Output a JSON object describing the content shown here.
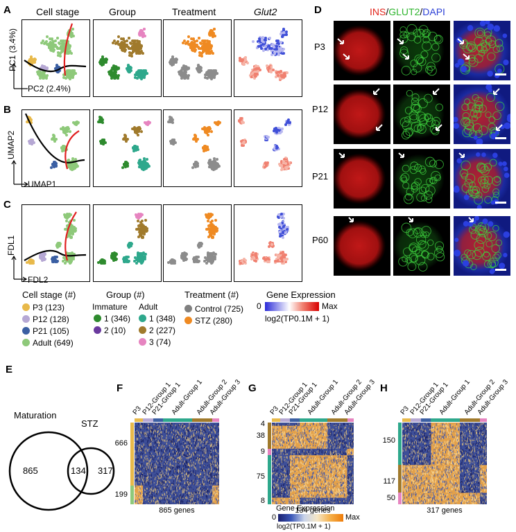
{
  "labels": {
    "A": "A",
    "B": "B",
    "C": "C",
    "D": "D",
    "E": "E",
    "F": "F",
    "G": "G",
    "H": "H"
  },
  "colheads": {
    "c1": "Cell stage",
    "c2": "Group",
    "c3": "Treatment",
    "c4": "Glut2"
  },
  "axes": {
    "A": {
      "y": "PC1 (3.4%)",
      "x": "PC2 (2.4%)"
    },
    "B": {
      "y": "UMAP2",
      "x": "UMAP1"
    },
    "C": {
      "y": "FDL1",
      "x": "FDL2"
    }
  },
  "micro": {
    "title_ins": "INS",
    "title_sep1": "/",
    "title_glut2": "GLUT2",
    "title_sep2": "/",
    "title_dapi": "DAPI",
    "rows": [
      "P3",
      "P12",
      "P21",
      "P60"
    ]
  },
  "legend": {
    "cellstage_title": "Cell stage (#)",
    "cellstage": [
      {
        "label": "P3 (123)",
        "color": "#e8b94a"
      },
      {
        "label": "P12 (128)",
        "color": "#b6a8d4"
      },
      {
        "label": "P21 (105)",
        "color": "#3b5fa3"
      },
      {
        "label": "Adult (649)",
        "color": "#8ec97a"
      }
    ],
    "group_title": "Group (#)",
    "immature_title": "Immature",
    "adult_title": "Adult",
    "immature": [
      {
        "label": "1 (346)",
        "color": "#2e8b2e"
      },
      {
        "label": "2 (10)",
        "color": "#6a3a9e"
      }
    ],
    "adult": [
      {
        "label": "1 (348)",
        "color": "#2ea88c"
      },
      {
        "label": "2 (227)",
        "color": "#a07a2c"
      },
      {
        "label": "3 (74)",
        "color": "#e684c0"
      }
    ],
    "treatment_title": "Treatment (#)",
    "treatment": [
      {
        "label": "Control (725)",
        "color": "#808080"
      },
      {
        "label": "STZ (280)",
        "color": "#ef8a22"
      }
    ],
    "ge_title": "Gene Expression",
    "ge_min": "0",
    "ge_max": "Max",
    "ge_unit": "log2(TP0.1M + 1)"
  },
  "venn": {
    "left_label": "Maturation",
    "right_label": "STZ",
    "left": "865",
    "overlap": "134",
    "right": "317"
  },
  "heatmaps": {
    "cols": [
      "P3",
      "P12-Group 1",
      "P21-Group 1",
      "Adult-Group 1",
      "Adult-Group 2",
      "Adult-Group 3"
    ],
    "F": {
      "row_labels": [
        "666",
        "199"
      ],
      "caption": "865 genes"
    },
    "G": {
      "row_labels": [
        "4",
        "38",
        "9",
        "75",
        "8"
      ],
      "caption": "134 genes"
    },
    "H": {
      "row_labels": [
        "150",
        "117",
        "50"
      ],
      "caption": "317 genes"
    },
    "legend_title": "Gene Expression",
    "legend_min": "0",
    "legend_max": "Max",
    "legend_unit": "log2(TP0.1M + 1)"
  }
}
